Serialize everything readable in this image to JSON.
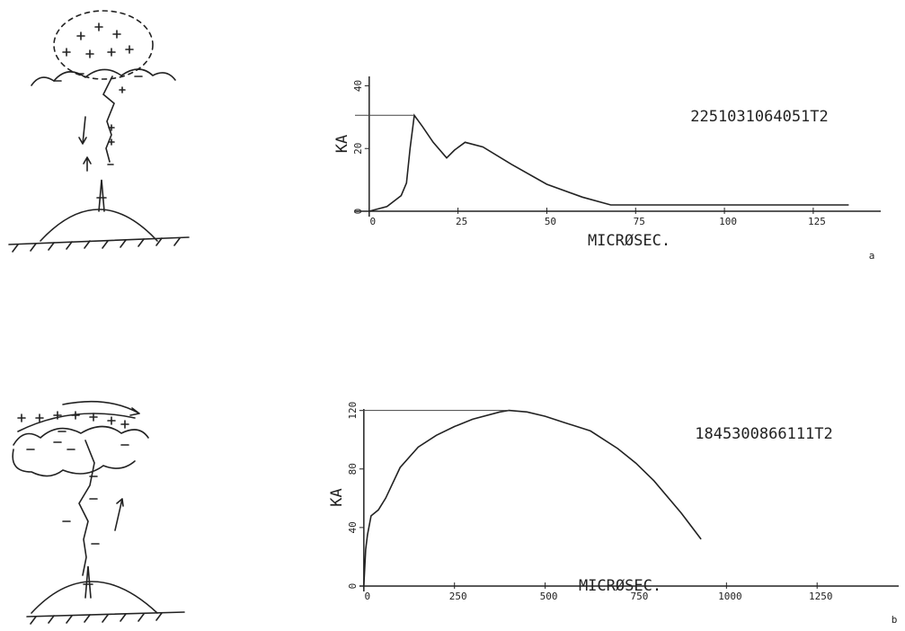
{
  "chart_data": [
    {
      "type": "line",
      "id_text": "2251031064051T2",
      "panel": "a",
      "ylabel": "KA",
      "xlabel": "MICRØSEC.",
      "series": [
        {
          "color": "#222222",
          "x": [
            0,
            5,
            9,
            10.5,
            11.5,
            12.7,
            15,
            18,
            21.8,
            24,
            27,
            32,
            40,
            50,
            60,
            68,
            80,
            100,
            120,
            135
          ],
          "values": [
            0,
            1.5,
            5,
            9,
            20,
            30.6,
            27,
            22,
            17,
            19.5,
            22,
            20.5,
            15,
            8.6,
            4.5,
            2,
            2,
            2,
            2,
            2
          ]
        }
      ],
      "xlim": [
        -4,
        144
      ],
      "ylim": [
        0,
        43
      ],
      "xticks": [
        0,
        25,
        50,
        75,
        100,
        125
      ],
      "yticks": [
        0,
        20,
        40
      ]
    },
    {
      "type": "line",
      "id_text": "1845300866111T2",
      "panel": "b",
      "ylabel": "KA",
      "xlabel": "MICRØSEC.",
      "series": [
        {
          "color": "#222222",
          "x": [
            0,
            5,
            10,
            20,
            40,
            60,
            100,
            150,
            200,
            250,
            300,
            375,
            400,
            450,
            500,
            550,
            625,
            700,
            750,
            800,
            875,
            930
          ],
          "values": [
            0,
            25,
            35,
            48,
            52,
            60,
            81,
            95,
            103,
            109,
            114,
            119,
            120,
            119,
            116,
            112,
            106,
            94,
            84,
            72,
            50,
            32
          ]
        }
      ],
      "xlim": [
        -12,
        1475
      ],
      "ylim": [
        0,
        121
      ],
      "xticks": [
        0,
        250,
        500,
        750,
        1000,
        1250
      ],
      "yticks": [
        0,
        40,
        80,
        120
      ]
    }
  ]
}
